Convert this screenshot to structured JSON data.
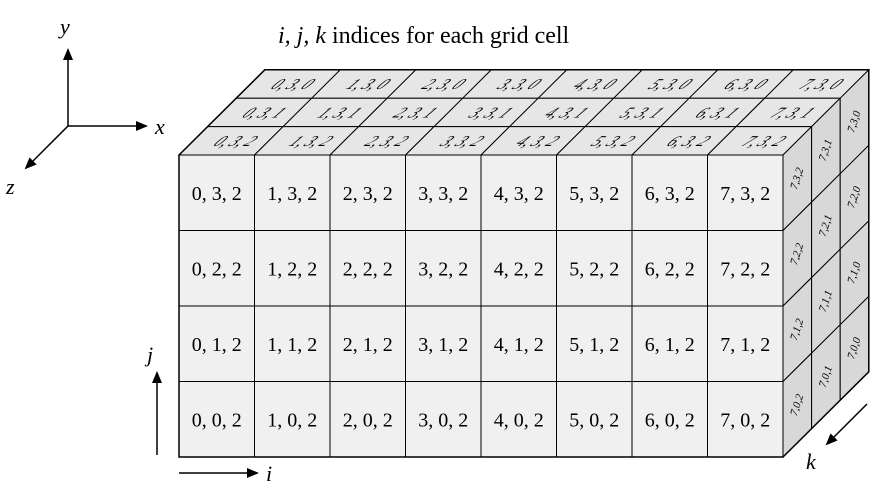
{
  "title": {
    "prefix_italic": "i, j, k",
    "suffix": " indices for each grid cell"
  },
  "axes": {
    "x": "x",
    "y": "y",
    "z": "z",
    "i": "i",
    "j": "j",
    "k": "k"
  },
  "grid": {
    "ni": 8,
    "nj": 4,
    "nk": 3,
    "front_k": 2,
    "top_j": 3,
    "side_i": 7
  },
  "front_face_labels": [
    [
      "0, 3, 2",
      "1, 3, 2",
      "2, 3, 2",
      "3, 3, 2",
      "4, 3, 2",
      "5, 3, 2",
      "6, 3, 2",
      "7, 3, 2"
    ],
    [
      "0, 2, 2",
      "1, 2, 2",
      "2, 2, 2",
      "3, 2, 2",
      "4, 2, 2",
      "5, 2, 2",
      "6, 2, 2",
      "7, 2, 2"
    ],
    [
      "0, 1, 2",
      "1, 1, 2",
      "2, 1, 2",
      "3, 1, 2",
      "4, 1, 2",
      "5, 1, 2",
      "6, 1, 2",
      "7, 1, 2"
    ],
    [
      "0, 0, 2",
      "1, 0, 2",
      "2, 0, 2",
      "3, 0, 2",
      "4, 0, 2",
      "5, 0, 2",
      "6, 0, 2",
      "7, 0, 2"
    ]
  ],
  "top_face_labels": [
    [
      "0, 3, 0",
      "1, 3, 0",
      "2, 3, 0",
      "3, 3, 0",
      "4, 3, 0",
      "5, 3, 0",
      "6, 3, 0",
      "7, 3, 0"
    ],
    [
      "0, 3, 1",
      "1, 3, 1",
      "2, 3, 1",
      "3, 3, 1",
      "4, 3, 1",
      "5, 3, 1",
      "6, 3, 1",
      "7, 3, 1"
    ],
    [
      "0, 3, 2",
      "1, 3, 2",
      "2, 3, 2",
      "3, 3, 2",
      "4, 3, 2",
      "5, 3, 2",
      "6, 3, 2",
      "7, 3, 2"
    ]
  ],
  "side_face_labels": [
    [
      "7,3,2",
      "7,3,1",
      "7,3,0"
    ],
    [
      "7,2,2",
      "7,2,1",
      "7,2,0"
    ],
    [
      "7,1,2",
      "7,1,1",
      "7,1,0"
    ],
    [
      "7,0,2",
      "7,0,1",
      "7,0,0"
    ]
  ],
  "colors": {
    "front": "#f0f0f0",
    "top": "#e6e6e6",
    "side": "#d8d8d8",
    "stroke": "#000000"
  }
}
